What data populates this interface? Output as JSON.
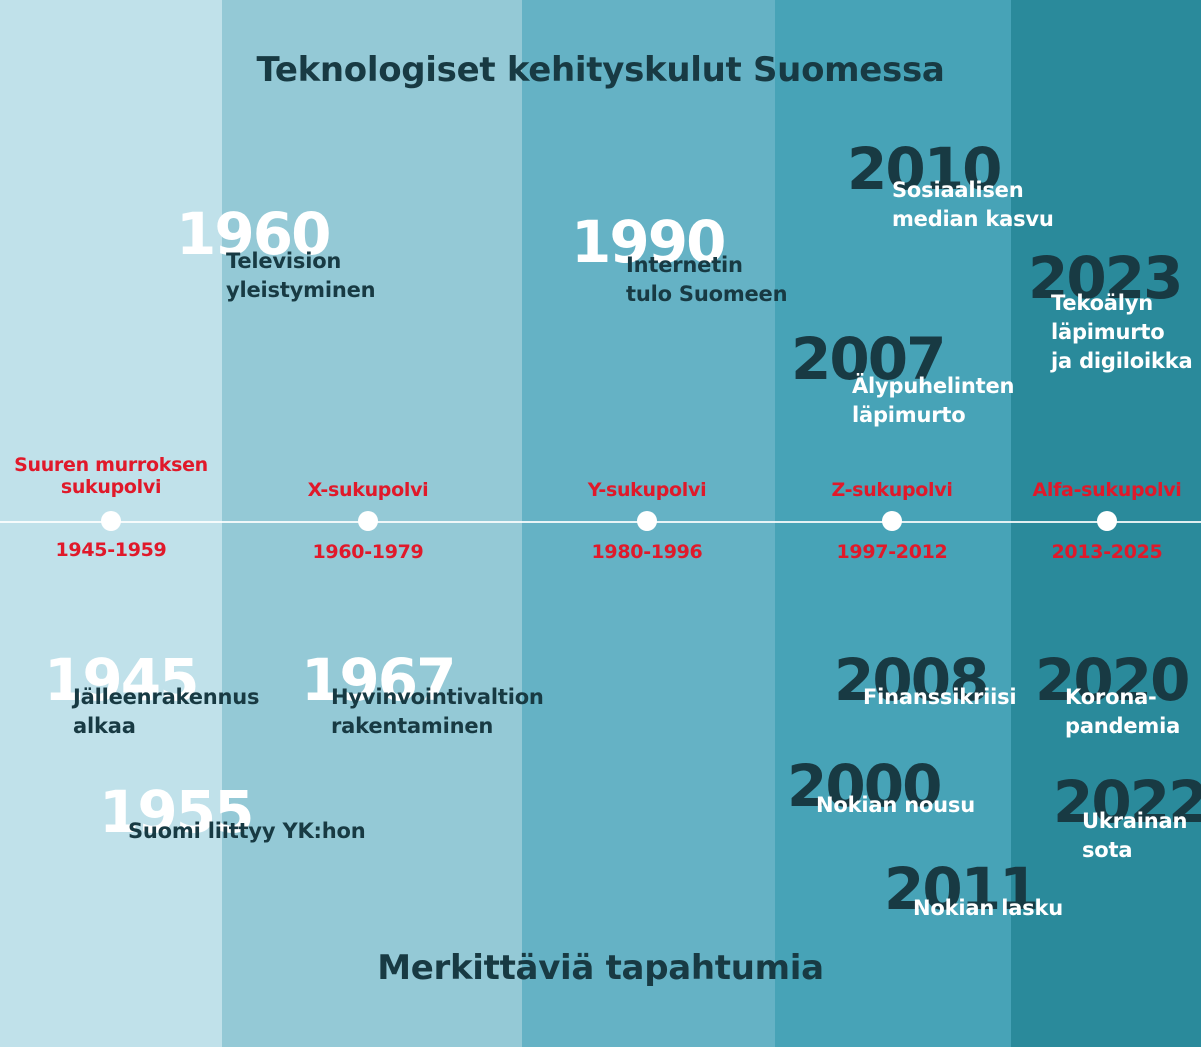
{
  "title": "Teknologiset kehityskulut Suomessa",
  "subtitle": "Merkittäviä tapahtumia",
  "colors": {
    "band_1": "#c0e1ea",
    "band_2": "#94c9d6",
    "band_3": "#65b2c5",
    "band_4": "#47a3b7",
    "band_5": "#2a8a9b",
    "generation_text": "#e0192a",
    "dark_text": "#183a43",
    "light_text": "#ffffff"
  },
  "generations": [
    {
      "name": "Suuren murroksen sukupolvi",
      "years": "1945-1959"
    },
    {
      "name": "X-sukupolvi",
      "years": "1960-1979"
    },
    {
      "name": "Y-sukupolvi",
      "years": "1980-1996"
    },
    {
      "name": "Z-sukupolvi",
      "years": "1997-2012"
    },
    {
      "name": "Alfa-sukupolvi",
      "years": "2013-2025"
    }
  ],
  "technology_events": [
    {
      "year": "1960",
      "description": "Television yleistyminen"
    },
    {
      "year": "1990",
      "description": "Internetin tulo Suomeen"
    },
    {
      "year": "2010",
      "description": "Sosiaalisen median kasvu"
    },
    {
      "year": "2007",
      "description": "Älypuhelinten läpimurto"
    },
    {
      "year": "2023",
      "description": "Tekoälyn läpimurto ja digiloikka"
    }
  ],
  "significant_events": [
    {
      "year": "1945",
      "description": "Jälleenrakennus alkaa"
    },
    {
      "year": "1955",
      "description": "Suomi liittyy YK:hon"
    },
    {
      "year": "1967",
      "description": "Hyvinvointivaltion rakentaminen"
    },
    {
      "year": "2008",
      "description": "Finanssikriisi"
    },
    {
      "year": "2000",
      "description": "Nokian nousu"
    },
    {
      "year": "2011",
      "description": "Nokian lasku"
    },
    {
      "year": "2020",
      "description": "Korona-pandemia"
    },
    {
      "year": "2022",
      "description": "Ukrainan sota"
    }
  ]
}
